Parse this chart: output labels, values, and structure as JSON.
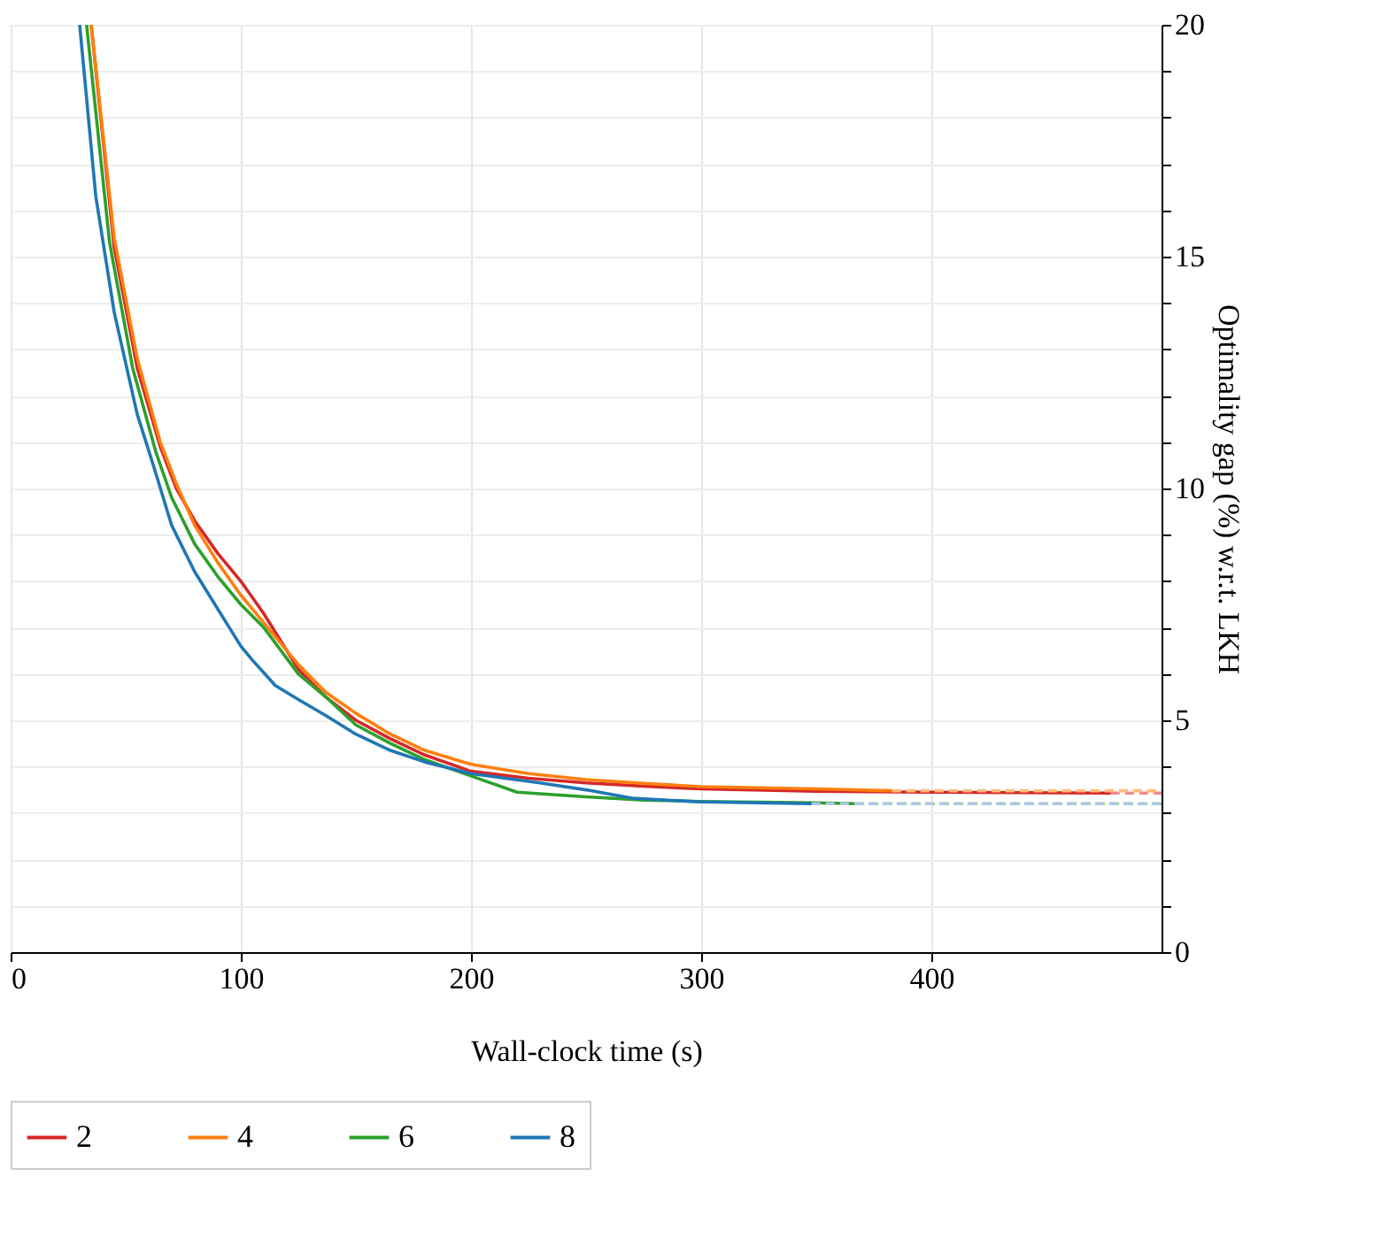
{
  "chart_data": {
    "type": "line",
    "xlabel": "Wall-clock time (s)",
    "ylabel": "Optimality gap (%) w.r.t. LKH",
    "xlim": [
      0,
      500
    ],
    "xticks": [
      0,
      100,
      200,
      300,
      400
    ],
    "ylim": [
      0,
      20
    ],
    "yticks": [
      0,
      {
        "value": 1,
        "label": null
      },
      {
        "value": 2,
        "label": null
      },
      {
        "value": 3,
        "label": null
      },
      {
        "value": 4,
        "label": null
      },
      5,
      {
        "value": 6,
        "label": null
      },
      {
        "value": 7,
        "label": null
      },
      {
        "value": 8,
        "label": null
      },
      {
        "value": 9,
        "label": null
      },
      10,
      {
        "value": 11,
        "label": null
      },
      {
        "value": 12,
        "label": null
      },
      {
        "value": 13,
        "label": null
      },
      {
        "value": 14,
        "label": null
      },
      15,
      {
        "value": 16,
        "label": null
      },
      {
        "value": 17,
        "label": null
      },
      {
        "value": 18,
        "label": null
      },
      {
        "value": 19,
        "label": null
      },
      20
    ],
    "grid": true,
    "legend": "bottom",
    "line_style": "solid",
    "series": [
      {
        "name": "2",
        "color": "#d62728",
        "x": [
          35,
          45,
          55,
          65,
          72,
          80,
          90,
          100,
          110,
          125,
          137,
          150,
          165,
          180,
          200,
          225,
          250,
          275,
          300,
          350,
          400,
          478
        ],
        "values": [
          20,
          15.2,
          12.6,
          10.9,
          10.0,
          9.3,
          8.6,
          8.0,
          7.3,
          6.1,
          5.5,
          5.0,
          4.6,
          4.25,
          3.9,
          3.75,
          3.65,
          3.58,
          3.52,
          3.47,
          3.45,
          3.43
        ]
      },
      {
        "name": "4",
        "color": "#ff7f0e",
        "x": [
          35,
          45,
          55,
          65,
          72,
          80,
          90,
          100,
          110,
          125,
          137,
          150,
          165,
          180,
          200,
          225,
          250,
          275,
          300,
          350,
          383
        ],
        "values": [
          20,
          15.4,
          12.8,
          11.0,
          10.1,
          9.2,
          8.4,
          7.7,
          7.1,
          6.2,
          5.6,
          5.15,
          4.7,
          4.35,
          4.05,
          3.85,
          3.72,
          3.64,
          3.57,
          3.52,
          3.48
        ]
      },
      {
        "name": "6",
        "color": "#2ca02c",
        "x": [
          33,
          43,
          53,
          63,
          70,
          80,
          90,
          100,
          110,
          125,
          137,
          150,
          165,
          180,
          200,
          220,
          250,
          275,
          300,
          350,
          367
        ],
        "values": [
          20,
          15.3,
          12.6,
          10.8,
          9.8,
          8.8,
          8.1,
          7.5,
          7.0,
          6.0,
          5.5,
          4.9,
          4.5,
          4.15,
          3.8,
          3.45,
          3.35,
          3.28,
          3.25,
          3.22,
          3.2
        ]
      },
      {
        "name": "8",
        "color": "#1f77b4",
        "x": [
          30,
          37,
          45,
          55,
          62,
          70,
          80,
          90,
          100,
          105,
          115,
          125,
          137,
          150,
          165,
          180,
          200,
          230,
          250,
          270,
          300,
          348
        ],
        "values": [
          20,
          16.3,
          13.8,
          11.6,
          10.5,
          9.2,
          8.2,
          7.4,
          6.6,
          6.3,
          5.75,
          5.45,
          5.1,
          4.7,
          4.35,
          4.1,
          3.85,
          3.65,
          3.5,
          3.32,
          3.24,
          3.2
        ]
      },
      {
        "color": "#f08a8a",
        "line_style": "dashed",
        "x": [
          478,
          500
        ],
        "values": [
          3.43,
          3.43
        ]
      },
      {
        "color": "#ffbb78",
        "line_style": "dashed",
        "x": [
          383,
          500
        ],
        "values": [
          3.48,
          3.48
        ]
      },
      {
        "color": "#98df8a",
        "line_style": "dashed",
        "x": [
          367,
          500
        ],
        "values": [
          3.2,
          3.2
        ]
      },
      {
        "color": "#aec7e8",
        "line_style": "dashed",
        "x": [
          348,
          500
        ],
        "values": [
          3.2,
          3.2
        ]
      }
    ]
  }
}
